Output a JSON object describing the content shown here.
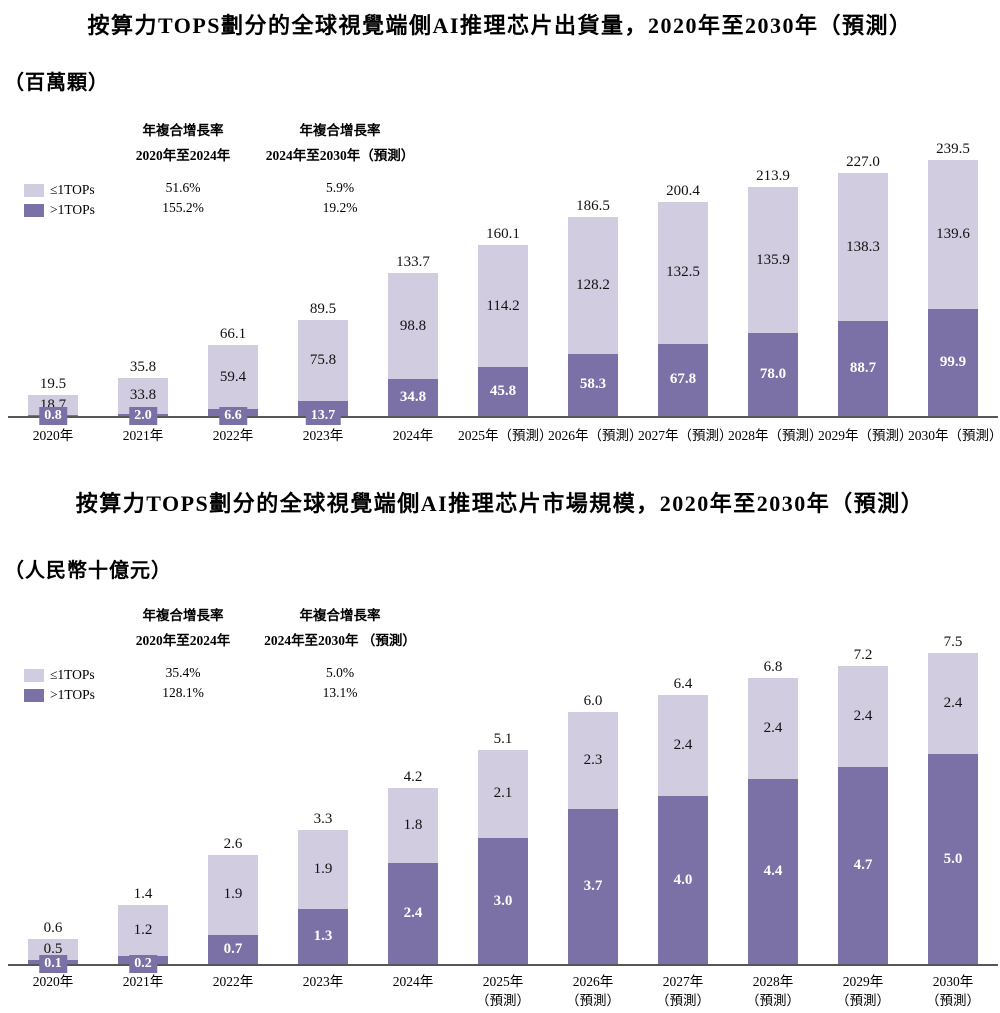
{
  "colors": {
    "light_series": "#d2cce0",
    "dark_series": "#7b71a6",
    "axis": "#54565a",
    "label_on_dark": "#ffffff",
    "text": "#000000"
  },
  "chart_data": [
    {
      "type": "bar",
      "stacked": true,
      "title": "按算力TOPS劃分的全球視覺端側AI推理芯片出貨量，2020年至2030年（預測）",
      "unit_label": "（百萬顆）",
      "categories": [
        "2020年",
        "2021年",
        "2022年",
        "2023年",
        "2024年",
        "2025年（預測）",
        "2026年（預測）",
        "2027年（預測）",
        "2028年（預測）",
        "2029年（預測）",
        "2030年（預測）"
      ],
      "series": [
        {
          "name": "≤1TOPs",
          "color_key": "light_series",
          "values": [
            18.7,
            33.8,
            59.4,
            75.8,
            98.8,
            114.2,
            128.2,
            132.5,
            135.9,
            138.3,
            139.6
          ]
        },
        {
          "name": ">1TOPs",
          "color_key": "dark_series",
          "values": [
            0.8,
            2.0,
            6.6,
            13.7,
            34.8,
            45.8,
            58.3,
            67.8,
            78.0,
            88.7,
            99.9
          ]
        }
      ],
      "totals": [
        19.5,
        35.8,
        66.1,
        89.5,
        133.7,
        160.1,
        186.5,
        200.4,
        213.9,
        227.0,
        239.5
      ],
      "cagr": {
        "col1": {
          "header": "年複合增長率",
          "period": "2020年至2024年",
          "light_value": "51.6%",
          "dark_value": "155.2%"
        },
        "col2": {
          "header": "年複合增長率",
          "period": "2024年至2030年（預測）",
          "light_value": "5.9%",
          "dark_value": "19.2%"
        }
      },
      "ylim": [
        0,
        250
      ],
      "grid": false,
      "legend_position": "top-left"
    },
    {
      "type": "bar",
      "stacked": true,
      "title": "按算力TOPS劃分的全球視覺端側AI推理芯片市場規模，2020年至2030年（預測）",
      "unit_label": "（人民幣十億元）",
      "categories": [
        "2020年",
        "2021年",
        "2022年",
        "2023年",
        "2024年",
        "2025年（預測）",
        "2026年（預測）",
        "2027年（預測）",
        "2028年（預測）",
        "2029年（預測）",
        "2030年（預測）"
      ],
      "series": [
        {
          "name": "≤1TOPs",
          "color_key": "light_series",
          "values": [
            0.5,
            1.2,
            1.9,
            1.9,
            1.8,
            2.1,
            2.3,
            2.4,
            2.4,
            2.4,
            2.4
          ]
        },
        {
          "name": ">1TOPs",
          "color_key": "dark_series",
          "values": [
            0.1,
            0.2,
            0.7,
            1.3,
            2.4,
            3.0,
            3.7,
            4.0,
            4.4,
            4.7,
            5.0
          ]
        }
      ],
      "totals": [
        0.6,
        1.4,
        2.6,
        3.3,
        4.2,
        5.1,
        6.0,
        6.4,
        6.8,
        7.2,
        7.5
      ],
      "cagr": {
        "col1": {
          "header": "年複合增長率",
          "period": "2020年至2024年",
          "light_value": "35.4%",
          "dark_value": "128.1%"
        },
        "col2": {
          "header": "年複合增長率",
          "period": "2024年至2030年 （預測）",
          "light_value": "5.0%",
          "dark_value": "13.1%"
        }
      },
      "ylim": [
        0,
        8
      ],
      "grid": false,
      "legend_position": "top-left"
    }
  ]
}
